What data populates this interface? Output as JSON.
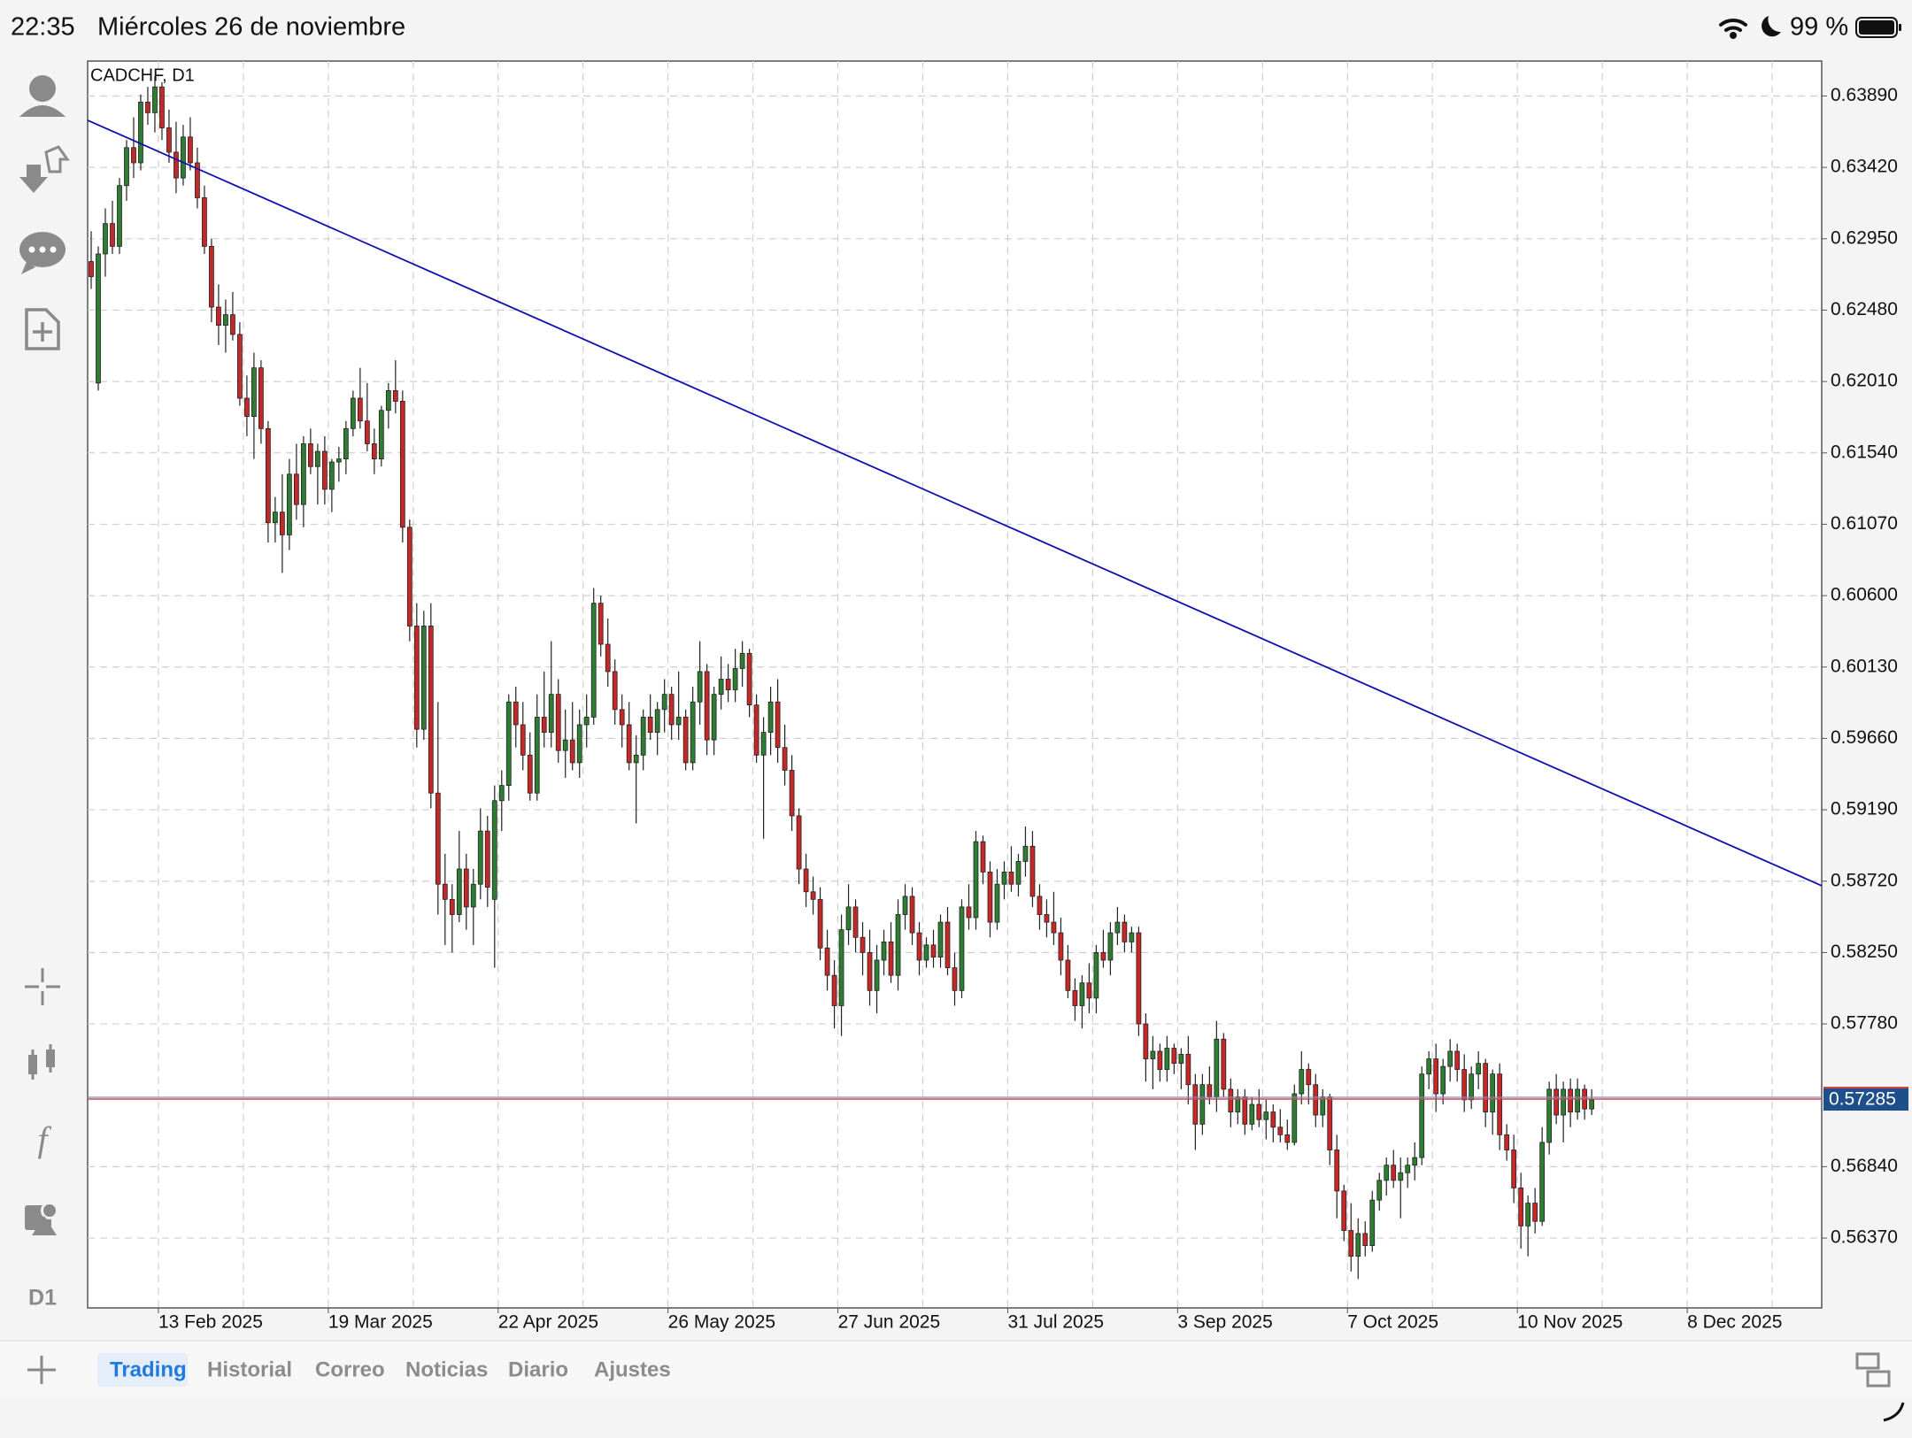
{
  "status_bar": {
    "time": "22:35",
    "date": "Miércoles 26 de noviembre",
    "battery": "99 %"
  },
  "toolbar": {
    "timeframe": "D1"
  },
  "tabs": [
    "Trading",
    "Historial",
    "Correo",
    "Noticias",
    "Diario",
    "Ajustes"
  ],
  "chart_data": {
    "type": "candlestick",
    "title": "CADCHF, D1",
    "up_color": "#2e7d32",
    "down_color": "#c62828",
    "grid": true,
    "xlim": [
      -0.5,
      244.5
    ],
    "ylim": [
      0.5591,
      0.6412
    ],
    "xticks": [
      {
        "value": 9.5,
        "label": "13 Feb 2025"
      },
      {
        "value": 33.5,
        "label": "19 Mar 2025"
      },
      {
        "value": 57.5,
        "label": "22 Apr 2025"
      },
      {
        "value": 81.5,
        "label": "26 May 2025"
      },
      {
        "value": 105.5,
        "label": "27 Jun 2025"
      },
      {
        "value": 129.5,
        "label": "31 Jul 2025"
      },
      {
        "value": 153.5,
        "label": "3 Sep 2025"
      },
      {
        "value": 177.5,
        "label": "7 Oct 2025"
      },
      {
        "value": 201.5,
        "label": "10 Nov 2025"
      },
      {
        "value": 225.5,
        "label": "8 Dec 2025"
      }
    ],
    "yticks": [
      {
        "value": 0.6389,
        "label": "0.63890"
      },
      {
        "value": 0.6342,
        "label": "0.63420"
      },
      {
        "value": 0.6295,
        "label": "0.62950"
      },
      {
        "value": 0.6248,
        "label": "0.62480"
      },
      {
        "value": 0.6201,
        "label": "0.62010"
      },
      {
        "value": 0.6154,
        "label": "0.61540"
      },
      {
        "value": 0.6107,
        "label": "0.61070"
      },
      {
        "value": 0.606,
        "label": "0.60600"
      },
      {
        "value": 0.6013,
        "label": "0.60130"
      },
      {
        "value": 0.5966,
        "label": "0.59660"
      },
      {
        "value": 0.5919,
        "label": "0.59190"
      },
      {
        "value": 0.5872,
        "label": "0.58720"
      },
      {
        "value": 0.5825,
        "label": "0.58250"
      },
      {
        "value": 0.5778,
        "label": "0.57780"
      },
      {
        "value": 0.5684,
        "label": "0.56840"
      },
      {
        "value": 0.5637,
        "label": "0.56370"
      }
    ],
    "last_price": 0.57285,
    "trendline": {
      "x": [
        -0.5,
        244.5
      ],
      "y": [
        0.6373,
        0.5869
      ],
      "color": "#1010b0"
    },
    "ohlc": [
      [
        0.628,
        0.63,
        0.6262,
        0.627
      ],
      [
        0.62,
        0.629,
        0.6195,
        0.6285
      ],
      [
        0.6285,
        0.6315,
        0.627,
        0.6305
      ],
      [
        0.6305,
        0.632,
        0.6285,
        0.629
      ],
      [
        0.629,
        0.6335,
        0.6285,
        0.633
      ],
      [
        0.633,
        0.636,
        0.632,
        0.6355
      ],
      [
        0.6355,
        0.6375,
        0.6335,
        0.6345
      ],
      [
        0.6345,
        0.639,
        0.634,
        0.6385
      ],
      [
        0.6385,
        0.6395,
        0.637,
        0.6378
      ],
      [
        0.6378,
        0.6402,
        0.6365,
        0.6395
      ],
      [
        0.6395,
        0.6398,
        0.636,
        0.6368
      ],
      [
        0.6368,
        0.638,
        0.6345,
        0.6352
      ],
      [
        0.6352,
        0.6372,
        0.6325,
        0.6335
      ],
      [
        0.6335,
        0.637,
        0.633,
        0.6362
      ],
      [
        0.6362,
        0.6375,
        0.634,
        0.6345
      ],
      [
        0.6345,
        0.6355,
        0.6315,
        0.6322
      ],
      [
        0.6322,
        0.633,
        0.6285,
        0.629
      ],
      [
        0.629,
        0.6295,
        0.624,
        0.625
      ],
      [
        0.625,
        0.6265,
        0.6225,
        0.6238
      ],
      [
        0.6238,
        0.6255,
        0.622,
        0.6245
      ],
      [
        0.6245,
        0.626,
        0.6228,
        0.6232
      ],
      [
        0.6232,
        0.624,
        0.6185,
        0.619
      ],
      [
        0.619,
        0.6205,
        0.6165,
        0.6178
      ],
      [
        0.6178,
        0.622,
        0.615,
        0.621
      ],
      [
        0.621,
        0.6215,
        0.616,
        0.617
      ],
      [
        0.617,
        0.6175,
        0.6095,
        0.6108
      ],
      [
        0.6108,
        0.6125,
        0.6095,
        0.6115
      ],
      [
        0.6115,
        0.614,
        0.6075,
        0.61
      ],
      [
        0.61,
        0.615,
        0.609,
        0.614
      ],
      [
        0.614,
        0.616,
        0.611,
        0.612
      ],
      [
        0.612,
        0.6165,
        0.6105,
        0.616
      ],
      [
        0.616,
        0.617,
        0.614,
        0.6145
      ],
      [
        0.6145,
        0.616,
        0.612,
        0.6155
      ],
      [
        0.6155,
        0.6165,
        0.612,
        0.613
      ],
      [
        0.613,
        0.615,
        0.6115,
        0.6148
      ],
      [
        0.6148,
        0.6158,
        0.6135,
        0.615
      ],
      [
        0.615,
        0.6175,
        0.614,
        0.617
      ],
      [
        0.617,
        0.6195,
        0.6165,
        0.619
      ],
      [
        0.619,
        0.621,
        0.617,
        0.6175
      ],
      [
        0.6175,
        0.62,
        0.6155,
        0.616
      ],
      [
        0.616,
        0.617,
        0.614,
        0.615
      ],
      [
        0.615,
        0.6185,
        0.6145,
        0.6182
      ],
      [
        0.6182,
        0.62,
        0.617,
        0.6195
      ],
      [
        0.6195,
        0.6215,
        0.618,
        0.6188
      ],
      [
        0.6188,
        0.6195,
        0.6095,
        0.6105
      ],
      [
        0.6105,
        0.611,
        0.603,
        0.604
      ],
      [
        0.604,
        0.6055,
        0.596,
        0.5972
      ],
      [
        0.5972,
        0.605,
        0.5965,
        0.604
      ],
      [
        0.604,
        0.6055,
        0.592,
        0.593
      ],
      [
        0.593,
        0.599,
        0.585,
        0.587
      ],
      [
        0.587,
        0.589,
        0.583,
        0.586
      ],
      [
        0.586,
        0.587,
        0.5825,
        0.585
      ],
      [
        0.585,
        0.5905,
        0.5845,
        0.588
      ],
      [
        0.588,
        0.589,
        0.584,
        0.5855
      ],
      [
        0.5855,
        0.588,
        0.583,
        0.587
      ],
      [
        0.587,
        0.592,
        0.586,
        0.5905
      ],
      [
        0.5905,
        0.5915,
        0.5855,
        0.5868
      ],
      [
        0.586,
        0.5935,
        0.5815,
        0.5925
      ],
      [
        0.5925,
        0.5945,
        0.5905,
        0.5935
      ],
      [
        0.5935,
        0.5995,
        0.5925,
        0.599
      ],
      [
        0.599,
        0.6,
        0.596,
        0.5975
      ],
      [
        0.5975,
        0.599,
        0.5945,
        0.5955
      ],
      [
        0.5955,
        0.597,
        0.5925,
        0.593
      ],
      [
        0.593,
        0.5995,
        0.5925,
        0.598
      ],
      [
        0.598,
        0.601,
        0.596,
        0.597
      ],
      [
        0.597,
        0.603,
        0.596,
        0.5995
      ],
      [
        0.5995,
        0.6005,
        0.595,
        0.5958
      ],
      [
        0.5958,
        0.5985,
        0.594,
        0.5965
      ],
      [
        0.5965,
        0.599,
        0.5945,
        0.595
      ],
      [
        0.595,
        0.5985,
        0.594,
        0.5975
      ],
      [
        0.5975,
        0.5995,
        0.596,
        0.598
      ],
      [
        0.598,
        0.6065,
        0.5975,
        0.6055
      ],
      [
        0.6055,
        0.606,
        0.602,
        0.6028
      ],
      [
        0.6028,
        0.6045,
        0.6,
        0.601
      ],
      [
        0.601,
        0.6018,
        0.5975,
        0.5985
      ],
      [
        0.5985,
        0.5995,
        0.596,
        0.5975
      ],
      [
        0.5975,
        0.599,
        0.5945,
        0.595
      ],
      [
        0.595,
        0.5968,
        0.591,
        0.5955
      ],
      [
        0.5955,
        0.5985,
        0.5945,
        0.598
      ],
      [
        0.598,
        0.5995,
        0.5965,
        0.597
      ],
      [
        0.597,
        0.599,
        0.5955,
        0.5985
      ],
      [
        0.5985,
        0.6005,
        0.597,
        0.5995
      ],
      [
        0.5995,
        0.6,
        0.5965,
        0.5975
      ],
      [
        0.5975,
        0.601,
        0.5965,
        0.598
      ],
      [
        0.598,
        0.5985,
        0.5945,
        0.595
      ],
      [
        0.595,
        0.6,
        0.5945,
        0.599
      ],
      [
        0.599,
        0.603,
        0.5975,
        0.601
      ],
      [
        0.601,
        0.6015,
        0.5955,
        0.5965
      ],
      [
        0.5965,
        0.6,
        0.5955,
        0.5995
      ],
      [
        0.5995,
        0.602,
        0.5985,
        0.6005
      ],
      [
        0.6005,
        0.6015,
        0.599,
        0.5998
      ],
      [
        0.5998,
        0.6025,
        0.599,
        0.6012
      ],
      [
        0.6012,
        0.603,
        0.6,
        0.6022
      ],
      [
        0.6022,
        0.6025,
        0.598,
        0.5988
      ],
      [
        0.5988,
        0.5995,
        0.595,
        0.5955
      ],
      [
        0.5955,
        0.598,
        0.59,
        0.597
      ],
      [
        0.597,
        0.6,
        0.5955,
        0.599
      ],
      [
        0.599,
        0.6005,
        0.595,
        0.596
      ],
      [
        0.596,
        0.5975,
        0.5935,
        0.5945
      ],
      [
        0.5945,
        0.5955,
        0.5905,
        0.5915
      ],
      [
        0.5915,
        0.592,
        0.587,
        0.588
      ],
      [
        0.588,
        0.589,
        0.5855,
        0.5865
      ],
      [
        0.5865,
        0.5875,
        0.585,
        0.586
      ],
      [
        0.586,
        0.5868,
        0.582,
        0.5828
      ],
      [
        0.5828,
        0.584,
        0.58,
        0.581
      ],
      [
        0.581,
        0.582,
        0.5775,
        0.579
      ],
      [
        0.579,
        0.585,
        0.577,
        0.584
      ],
      [
        0.584,
        0.587,
        0.583,
        0.5855
      ],
      [
        0.5855,
        0.586,
        0.5825,
        0.5835
      ],
      [
        0.5835,
        0.5845,
        0.581,
        0.5825
      ],
      [
        0.5825,
        0.584,
        0.579,
        0.58
      ],
      [
        0.58,
        0.583,
        0.5785,
        0.582
      ],
      [
        0.582,
        0.584,
        0.581,
        0.5832
      ],
      [
        0.5832,
        0.5845,
        0.5805,
        0.581
      ],
      [
        0.581,
        0.586,
        0.58,
        0.585
      ],
      [
        0.585,
        0.587,
        0.584,
        0.5862
      ],
      [
        0.5862,
        0.5868,
        0.583,
        0.5838
      ],
      [
        0.5838,
        0.5845,
        0.581,
        0.582
      ],
      [
        0.582,
        0.5835,
        0.5815,
        0.583
      ],
      [
        0.583,
        0.584,
        0.5815,
        0.5822
      ],
      [
        0.5822,
        0.585,
        0.5815,
        0.5845
      ],
      [
        0.5845,
        0.5855,
        0.581,
        0.5815
      ],
      [
        0.5815,
        0.5825,
        0.579,
        0.58
      ],
      [
        0.58,
        0.586,
        0.5795,
        0.5855
      ],
      [
        0.5855,
        0.587,
        0.584,
        0.5848
      ],
      [
        0.5848,
        0.5905,
        0.584,
        0.5898
      ],
      [
        0.5898,
        0.5902,
        0.587,
        0.5878
      ],
      [
        0.5878,
        0.5885,
        0.5835,
        0.5845
      ],
      [
        0.5845,
        0.588,
        0.584,
        0.587
      ],
      [
        0.587,
        0.5885,
        0.586,
        0.5878
      ],
      [
        0.5878,
        0.5895,
        0.5865,
        0.587
      ],
      [
        0.587,
        0.589,
        0.5862,
        0.5885
      ],
      [
        0.5885,
        0.5908,
        0.5875,
        0.5895
      ],
      [
        0.5895,
        0.5905,
        0.5855,
        0.5862
      ],
      [
        0.5862,
        0.587,
        0.584,
        0.585
      ],
      [
        0.585,
        0.586,
        0.5835,
        0.5845
      ],
      [
        0.5845,
        0.5865,
        0.583,
        0.5838
      ],
      [
        0.5838,
        0.5848,
        0.581,
        0.582
      ],
      [
        0.582,
        0.583,
        0.5795,
        0.58
      ],
      [
        0.58,
        0.5808,
        0.578,
        0.579
      ],
      [
        0.579,
        0.581,
        0.5775,
        0.5805
      ],
      [
        0.5805,
        0.5818,
        0.5785,
        0.5795
      ],
      [
        0.5795,
        0.583,
        0.5785,
        0.5825
      ],
      [
        0.5825,
        0.584,
        0.5815,
        0.582
      ],
      [
        0.582,
        0.5845,
        0.581,
        0.5838
      ],
      [
        0.5838,
        0.5855,
        0.583,
        0.5845
      ],
      [
        0.5845,
        0.585,
        0.5825,
        0.5832
      ],
      [
        0.5832,
        0.5842,
        0.5825,
        0.5838
      ],
      [
        0.5838,
        0.5842,
        0.577,
        0.5778
      ],
      [
        0.5778,
        0.5785,
        0.574,
        0.5755
      ],
      [
        0.5755,
        0.577,
        0.5735,
        0.576
      ],
      [
        0.576,
        0.5765,
        0.574,
        0.5748
      ],
      [
        0.5748,
        0.577,
        0.574,
        0.5762
      ],
      [
        0.5762,
        0.5765,
        0.5745,
        0.5752
      ],
      [
        0.5752,
        0.5762,
        0.5735,
        0.5758
      ],
      [
        0.5758,
        0.577,
        0.5725,
        0.5738
      ],
      [
        0.5738,
        0.5745,
        0.5695,
        0.5712
      ],
      [
        0.5712,
        0.5745,
        0.5705,
        0.5738
      ],
      [
        0.5738,
        0.575,
        0.5725,
        0.573
      ],
      [
        0.573,
        0.578,
        0.572,
        0.5768
      ],
      [
        0.5768,
        0.5772,
        0.573,
        0.5735
      ],
      [
        0.5735,
        0.5742,
        0.571,
        0.572
      ],
      [
        0.572,
        0.5735,
        0.5712,
        0.573
      ],
      [
        0.573,
        0.5735,
        0.5705,
        0.5712
      ],
      [
        0.5712,
        0.573,
        0.5708,
        0.5725
      ],
      [
        0.5725,
        0.5735,
        0.571,
        0.5715
      ],
      [
        0.5715,
        0.5728,
        0.5702,
        0.572
      ],
      [
        0.572,
        0.5725,
        0.57,
        0.571
      ],
      [
        0.571,
        0.5722,
        0.57,
        0.5705
      ],
      [
        0.5705,
        0.5715,
        0.5695,
        0.57
      ],
      [
        0.57,
        0.5738,
        0.5698,
        0.5732
      ],
      [
        0.5732,
        0.576,
        0.5725,
        0.5748
      ],
      [
        0.5748,
        0.5752,
        0.5725,
        0.5738
      ],
      [
        0.5738,
        0.5745,
        0.571,
        0.5718
      ],
      [
        0.5718,
        0.5735,
        0.571,
        0.573
      ],
      [
        0.573,
        0.5732,
        0.5685,
        0.5695
      ],
      [
        0.5695,
        0.5705,
        0.565,
        0.5668
      ],
      [
        0.5668,
        0.5672,
        0.5635,
        0.5642
      ],
      [
        0.5642,
        0.566,
        0.5615,
        0.5625
      ],
      [
        0.5625,
        0.565,
        0.561,
        0.564
      ],
      [
        0.564,
        0.5648,
        0.5625,
        0.5632
      ],
      [
        0.5632,
        0.5668,
        0.5628,
        0.5662
      ],
      [
        0.5662,
        0.568,
        0.5655,
        0.5675
      ],
      [
        0.5675,
        0.569,
        0.5665,
        0.5685
      ],
      [
        0.5685,
        0.5695,
        0.567,
        0.5675
      ],
      [
        0.5675,
        0.569,
        0.565,
        0.568
      ],
      [
        0.568,
        0.569,
        0.567,
        0.5685
      ],
      [
        0.5685,
        0.57,
        0.5675,
        0.569
      ],
      [
        0.569,
        0.575,
        0.5685,
        0.5745
      ],
      [
        0.5745,
        0.576,
        0.5735,
        0.5755
      ],
      [
        0.5755,
        0.5765,
        0.572,
        0.5732
      ],
      [
        0.5732,
        0.5755,
        0.5725,
        0.575
      ],
      [
        0.575,
        0.5768,
        0.574,
        0.576
      ],
      [
        0.576,
        0.5765,
        0.574,
        0.5748
      ],
      [
        0.5748,
        0.5758,
        0.572,
        0.5728
      ],
      [
        0.5728,
        0.575,
        0.5722,
        0.5745
      ],
      [
        0.5745,
        0.576,
        0.5735,
        0.5752
      ],
      [
        0.5752,
        0.5755,
        0.571,
        0.572
      ],
      [
        0.572,
        0.5748,
        0.5705,
        0.5745
      ],
      [
        0.5745,
        0.5752,
        0.5695,
        0.5705
      ],
      [
        0.5705,
        0.5712,
        0.5688,
        0.5695
      ],
      [
        0.5695,
        0.5705,
        0.566,
        0.567
      ],
      [
        0.567,
        0.568,
        0.563,
        0.5645
      ],
      [
        0.5645,
        0.5665,
        0.5625,
        0.566
      ],
      [
        0.566,
        0.567,
        0.564,
        0.5648
      ],
      [
        0.5648,
        0.571,
        0.5645,
        0.57
      ],
      [
        0.57,
        0.574,
        0.5692,
        0.5735
      ],
      [
        0.5735,
        0.5745,
        0.5712,
        0.5718
      ],
      [
        0.5718,
        0.574,
        0.57,
        0.5735
      ],
      [
        0.5735,
        0.5742,
        0.571,
        0.572
      ],
      [
        0.572,
        0.5742,
        0.5715,
        0.5735
      ],
      [
        0.5735,
        0.5738,
        0.5715,
        0.5722
      ],
      [
        0.5722,
        0.5735,
        0.5718,
        0.5728
      ]
    ]
  }
}
